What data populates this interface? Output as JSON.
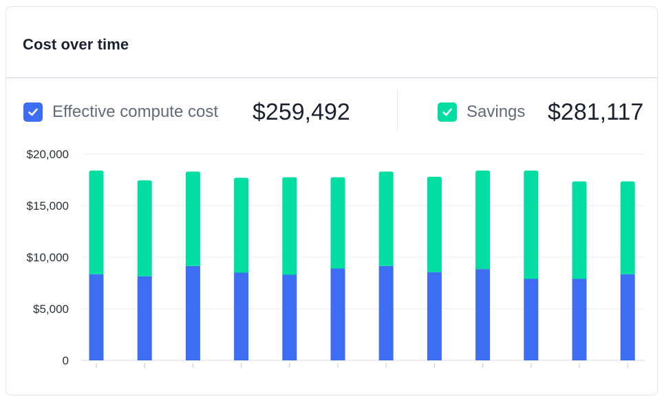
{
  "card": {
    "title": "Cost over time"
  },
  "legend": [
    {
      "label": "Effective compute cost",
      "value": "$259,492",
      "checked": true,
      "color": "#3d6df2",
      "icon": "checkbox-checked-icon"
    },
    {
      "label": "Savings",
      "value": "$281,117",
      "checked": true,
      "color": "#02dea1",
      "icon": "checkbox-checked-icon"
    }
  ],
  "chart_data": {
    "type": "bar",
    "stacked": true,
    "categories": [
      "",
      "",
      "",
      "",
      "",
      "",
      "",
      "",
      "",
      "",
      "",
      ""
    ],
    "series": [
      {
        "name": "Effective compute cost",
        "color": "#3d6df2",
        "values": [
          8350,
          8150,
          9150,
          8500,
          8300,
          8900,
          9150,
          8550,
          8850,
          7900,
          7900,
          8350
        ]
      },
      {
        "name": "Savings",
        "color": "#02dea1",
        "values": [
          10050,
          9300,
          9150,
          9200,
          9450,
          8850,
          9150,
          9250,
          9550,
          10500,
          9450,
          9000
        ]
      }
    ],
    "yticks": [
      "0",
      "$5,000",
      "$10,000",
      "$15,000",
      "$20,000"
    ],
    "ylim": [
      0,
      20000
    ],
    "grid": true
  }
}
